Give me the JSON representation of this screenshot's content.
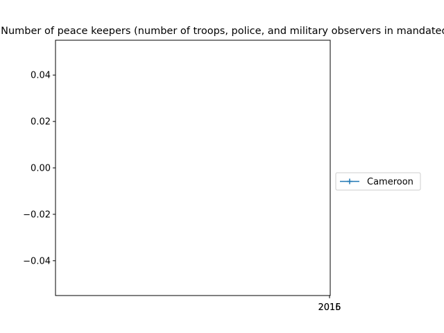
{
  "chart_data": {
    "type": "line",
    "title": "Number of peace keepers (number of troops, police, and military observers in mandated missions)",
    "xlabel": "",
    "ylabel": "",
    "x_ticks": [
      "2015",
      "2016"
    ],
    "ylim": [
      -0.055,
      0.055
    ],
    "y_ticks": [
      {
        "value": 0.04,
        "label": "0.04"
      },
      {
        "value": 0.02,
        "label": "0.02"
      },
      {
        "value": 0.0,
        "label": "0.00"
      },
      {
        "value": -0.02,
        "label": "−0.02"
      },
      {
        "value": -0.04,
        "label": "−0.04"
      }
    ],
    "grid": false,
    "legend_position": "center-right, outside plot",
    "series": [
      {
        "name": "Cameroon",
        "color": "#1f77b4",
        "marker": "plus",
        "x": [],
        "y": []
      }
    ]
  }
}
